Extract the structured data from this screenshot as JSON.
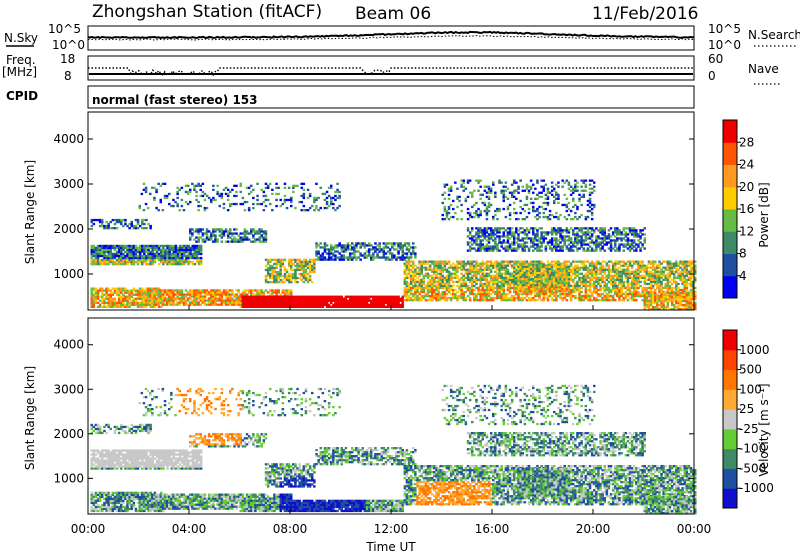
{
  "header": {
    "title": "Zhongshan Station (fitACF)",
    "beam": "Beam 06",
    "date": "11/Feb/2016"
  },
  "strips": {
    "nsky_label": "N.Sky",
    "nsky_ticks": [
      "10^5",
      "10^0"
    ],
    "nsearch_label": "N.Search",
    "nsearch_ticks": [
      "10^5",
      "10^0"
    ],
    "freq_label": "Freq.",
    "freq_unit": "[MHz]",
    "freq_ticks": [
      "18",
      "8"
    ],
    "nave_label": "Nave",
    "nave_ticks": [
      "60",
      "0"
    ],
    "cpid_label": "CPID",
    "cpid_text": "normal (fast stereo) 153"
  },
  "chart_data": [
    {
      "type": "heatmap",
      "name": "power",
      "ylabel": "Slant Range [km]",
      "yticks": [
        "1000",
        "2000",
        "3000",
        "4000"
      ],
      "ylim": [
        200,
        4600
      ],
      "colorbar_label": "Power [dB]",
      "colorbar_ticks": [
        "4",
        "8",
        "12",
        "16",
        "20",
        "24",
        "28"
      ],
      "colors": [
        "#0000ee",
        "#1e4fa0",
        "#3f8a66",
        "#66bb44",
        "#ffcc00",
        "#ff9922",
        "#ff5500",
        "#ee0000"
      ],
      "xlim_hours": [
        0,
        24
      ]
    },
    {
      "type": "heatmap",
      "name": "velocity",
      "ylabel": "Slant Range [km]",
      "yticks": [
        "1000",
        "2000",
        "3000",
        "4000"
      ],
      "ylim": [
        200,
        4600
      ],
      "colorbar_label": "Velocity [m s⁻¹]",
      "colorbar_ticks": [
        "1000",
        "500",
        "100",
        "25",
        "-25",
        "-100",
        "-500",
        "-1000"
      ],
      "colors": [
        "#1010cc",
        "#1e4fa0",
        "#3f8a66",
        "#66cc33",
        "#c8c8c8",
        "#ffaa33",
        "#ff7700",
        "#ff4400",
        "#ee0000"
      ],
      "xlim_hours": [
        0,
        24
      ]
    }
  ],
  "xaxis": {
    "label": "Time UT",
    "ticks": [
      "00:00",
      "04:00",
      "08:00",
      "12:00",
      "16:00",
      "20:00",
      "00:00"
    ]
  }
}
